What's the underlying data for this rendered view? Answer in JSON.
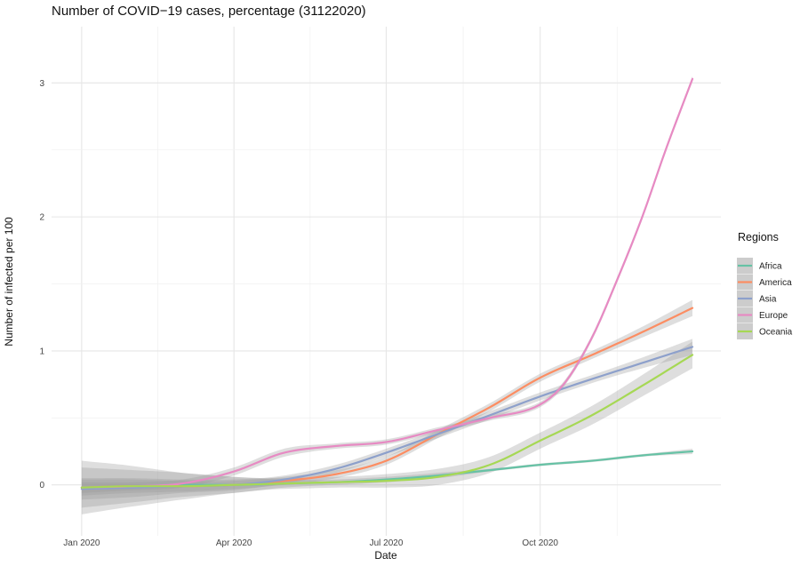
{
  "chart_data": {
    "type": "line",
    "title": "Number of COVID−19 cases, percentage (31122020)",
    "xlabel": "Date",
    "ylabel": "Number of infected per 100",
    "x_ticks": [
      "Jan 2020",
      "Apr 2020",
      "Jul 2020",
      "Oct 2020"
    ],
    "x_tick_dates": [
      "2020-01-01",
      "2020-04-01",
      "2020-07-01",
      "2020-10-01"
    ],
    "xlim": [
      "2019-12-14",
      "2021-01-17"
    ],
    "ylim": [
      -0.38,
      3.42
    ],
    "y_ticks": [
      "0",
      "1",
      "2",
      "3"
    ],
    "grid": true,
    "smoothed_with_confidence_band": true,
    "legend": {
      "title": "Regions",
      "position": "right"
    },
    "series": [
      {
        "name": "Africa",
        "color": "#66c2a5",
        "x": [
          "2020-01-01",
          "2020-02-01",
          "2020-03-01",
          "2020-04-01",
          "2020-05-01",
          "2020-06-01",
          "2020-07-01",
          "2020-08-01",
          "2020-09-01",
          "2020-10-01",
          "2020-11-01",
          "2020-12-01",
          "2020-12-31"
        ],
        "y": [
          -0.02,
          -0.01,
          0.0,
          0.0,
          0.01,
          0.02,
          0.04,
          0.07,
          0.11,
          0.15,
          0.18,
          0.22,
          0.25
        ],
        "band": [
          0.15,
          0.12,
          0.09,
          0.06,
          0.03,
          0.02,
          0.02,
          0.02,
          0.01,
          0.01,
          0.01,
          0.01,
          0.02
        ]
      },
      {
        "name": "America",
        "color": "#fc8d62",
        "x": [
          "2020-01-01",
          "2020-02-01",
          "2020-03-01",
          "2020-04-01",
          "2020-05-01",
          "2020-06-01",
          "2020-07-01",
          "2020-08-01",
          "2020-09-01",
          "2020-10-01",
          "2020-11-01",
          "2020-12-01",
          "2020-12-31"
        ],
        "y": [
          -0.02,
          -0.01,
          -0.01,
          0.0,
          0.03,
          0.08,
          0.18,
          0.38,
          0.58,
          0.8,
          0.97,
          1.14,
          1.32
        ],
        "band": [
          0.06,
          0.05,
          0.04,
          0.03,
          0.03,
          0.03,
          0.03,
          0.03,
          0.03,
          0.03,
          0.03,
          0.04,
          0.06
        ]
      },
      {
        "name": "Asia",
        "color": "#8da0cb",
        "x": [
          "2020-01-01",
          "2020-02-01",
          "2020-03-01",
          "2020-04-01",
          "2020-05-01",
          "2020-06-01",
          "2020-07-01",
          "2020-08-01",
          "2020-09-01",
          "2020-10-01",
          "2020-11-01",
          "2020-12-01",
          "2020-12-31"
        ],
        "y": [
          -0.03,
          -0.02,
          -0.01,
          0.0,
          0.04,
          0.12,
          0.24,
          0.38,
          0.52,
          0.66,
          0.79,
          0.91,
          1.03
        ],
        "band": [
          0.08,
          0.07,
          0.05,
          0.04,
          0.03,
          0.03,
          0.03,
          0.03,
          0.03,
          0.03,
          0.03,
          0.04,
          0.06
        ]
      },
      {
        "name": "Europe",
        "color": "#e78ac3",
        "x": [
          "2020-01-01",
          "2020-02-01",
          "2020-03-01",
          "2020-04-01",
          "2020-05-01",
          "2020-06-01",
          "2020-07-01",
          "2020-08-01",
          "2020-09-01",
          "2020-10-01",
          "2020-10-15",
          "2020-11-01",
          "2020-11-15",
          "2020-12-01",
          "2020-12-15",
          "2020-12-31"
        ],
        "y": [
          -0.02,
          -0.01,
          0.01,
          0.1,
          0.24,
          0.29,
          0.32,
          0.41,
          0.5,
          0.6,
          0.75,
          1.1,
          1.5,
          2.0,
          2.5,
          3.03
        ],
        "band": [
          0.04,
          0.03,
          0.03,
          0.03,
          0.03,
          0.02,
          0.02,
          0.02,
          0.02,
          0.02,
          0.02,
          0.02,
          0.02,
          0.02,
          0.02,
          0.02
        ]
      },
      {
        "name": "Oceania",
        "color": "#a6d854",
        "x": [
          "2020-01-01",
          "2020-02-01",
          "2020-03-01",
          "2020-04-01",
          "2020-05-01",
          "2020-06-01",
          "2020-07-01",
          "2020-08-01",
          "2020-09-01",
          "2020-10-01",
          "2020-11-01",
          "2020-12-01",
          "2020-12-31"
        ],
        "y": [
          -0.02,
          -0.01,
          -0.01,
          0.0,
          0.01,
          0.02,
          0.03,
          0.06,
          0.15,
          0.33,
          0.52,
          0.74,
          0.97
        ],
        "band": [
          0.2,
          0.15,
          0.1,
          0.06,
          0.04,
          0.04,
          0.05,
          0.06,
          0.06,
          0.06,
          0.07,
          0.08,
          0.1
        ]
      }
    ]
  }
}
